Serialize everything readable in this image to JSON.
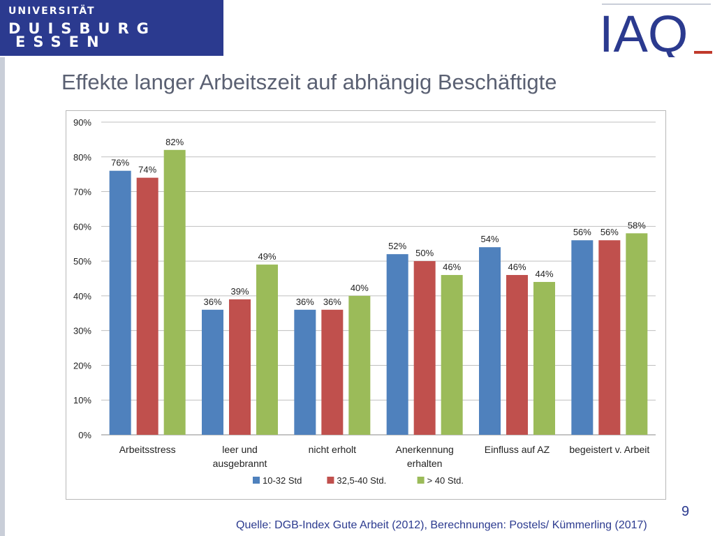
{
  "header": {
    "logo_line1": "UNIVERSITÄT",
    "logo_line2": "DUISBURG",
    "logo_line3": "ESSEN",
    "iaq_logo": "IAQ",
    "brand_color": "#2b3a8f",
    "iaq_accent": "#c0392b"
  },
  "title": "Effekte langer Arbeitszeit auf abhängig Beschäftigte",
  "page_number": "9",
  "source": "Quelle: DGB-Index Gute Arbeit (2012), Berechnungen: Postels/ Kümmerling (2017)",
  "chart_data": {
    "type": "bar",
    "categories": [
      [
        "Arbeitsstress"
      ],
      [
        "leer und",
        "ausgebrannt"
      ],
      [
        "nicht erholt"
      ],
      [
        "Anerkennung",
        "erhalten"
      ],
      [
        "Einfluss auf AZ"
      ],
      [
        "begeistert v. Arbeit"
      ]
    ],
    "series": [
      {
        "name": "10-32 Std",
        "color": "#4f81bd",
        "values": [
          76,
          36,
          36,
          52,
          54,
          56
        ]
      },
      {
        "name": "32,5-40 Std.",
        "color": "#c0504d",
        "values": [
          74,
          39,
          36,
          50,
          46,
          56
        ]
      },
      {
        "name": "> 40 Std.",
        "color": "#9bbb59",
        "values": [
          82,
          49,
          40,
          46,
          44,
          58
        ]
      }
    ],
    "data_labels": [
      [
        "76%",
        "36%",
        "36%",
        "52%",
        "54%",
        "56%"
      ],
      [
        "74%",
        "39%",
        "36%",
        "50%",
        "46%",
        "56%"
      ],
      [
        "82%",
        "49%",
        "40%",
        "46%",
        "44%",
        "58%"
      ]
    ],
    "y_ticks": [
      "0%",
      "10%",
      "20%",
      "30%",
      "40%",
      "50%",
      "60%",
      "70%",
      "80%",
      "90%"
    ],
    "ylim": [
      0,
      90
    ],
    "grid": true,
    "legend_position": "bottom"
  }
}
